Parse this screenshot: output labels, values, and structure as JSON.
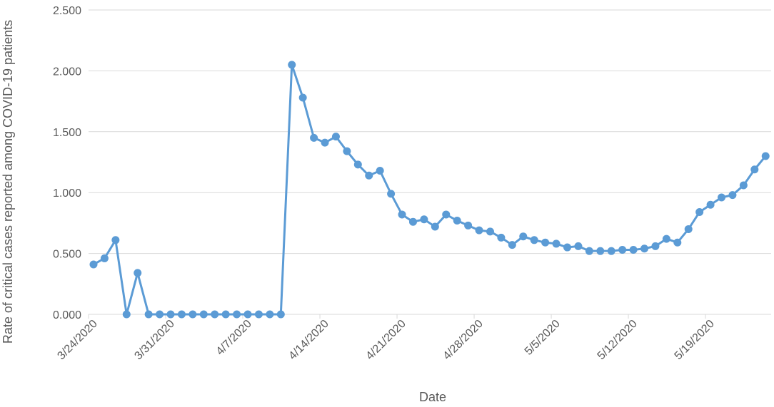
{
  "chart_data": {
    "type": "line",
    "x_label": "Date",
    "y_label": "Rate of critical cases reported among COVID-19 patients",
    "categories": [
      "3/24/2020",
      null,
      null,
      null,
      null,
      null,
      null,
      "3/31/2020",
      null,
      null,
      null,
      null,
      null,
      null,
      "4/7/2020",
      null,
      null,
      null,
      null,
      null,
      null,
      "4/14/2020",
      null,
      null,
      null,
      null,
      null,
      null,
      "4/21/2020",
      null,
      null,
      null,
      null,
      null,
      null,
      "4/28/2020",
      null,
      null,
      null,
      null,
      null,
      null,
      "5/5/2020",
      null,
      null,
      null,
      null,
      null,
      null,
      "5/12/2020",
      null,
      null,
      null,
      null,
      null,
      null,
      "5/19/2020",
      null,
      null,
      null,
      null,
      null
    ],
    "series": [
      {
        "color": "#5b9bd5",
        "values": [
          0.41,
          0.46,
          0.61,
          0.0,
          0.34,
          0,
          0,
          0,
          0,
          0,
          0,
          0,
          0,
          0,
          0,
          0,
          0,
          0,
          2.05,
          1.78,
          1.45,
          1.41,
          1.46,
          1.34,
          1.23,
          1.14,
          1.18,
          0.99,
          0.82,
          0.76,
          0.78,
          0.72,
          0.82,
          0.77,
          0.73,
          0.69,
          0.68,
          0.63,
          0.57,
          0.64,
          0.61,
          0.59,
          0.58,
          0.55,
          0.56,
          0.52,
          0.52,
          0.52,
          0.53,
          0.53,
          0.54,
          0.56,
          0.62,
          0.59,
          0.7,
          0.84,
          0.9,
          0.96,
          0.98,
          1.06,
          1.19,
          1.3
        ]
      }
    ],
    "ylim": [
      0,
      2.5
    ],
    "yticks": [
      {
        "value": 0,
        "label": "0.000"
      },
      {
        "value": 0.5,
        "label": "0.500"
      },
      {
        "value": 1,
        "label": "1.000"
      },
      {
        "value": 1.5,
        "label": "1.500"
      },
      {
        "value": 2,
        "label": "2.000"
      },
      {
        "value": 2.5,
        "label": "2.500"
      }
    ],
    "grid": true
  }
}
